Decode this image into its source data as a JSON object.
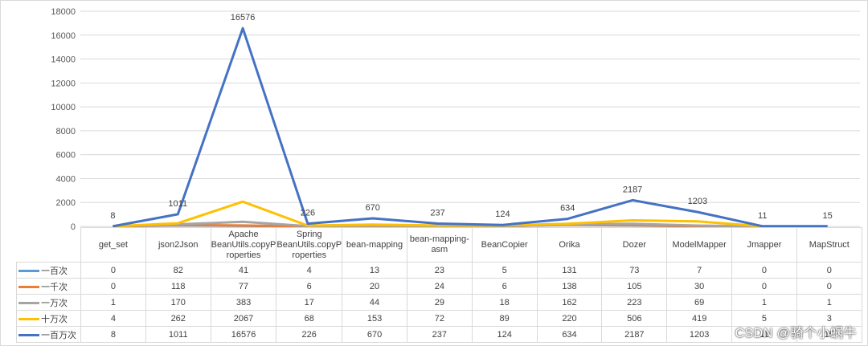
{
  "chart_data": {
    "type": "line",
    "categories": [
      "get_set",
      "json2Json",
      "Apache BeanUtils.copyProperties",
      "Spring BeanUtils.copyProperties",
      "bean-mapping",
      "bean-mapping-asm",
      "BeanCopier",
      "Orika",
      "Dozer",
      "ModelMapper",
      "Jmapper",
      "MapStruct"
    ],
    "category_display": [
      [
        "get_set"
      ],
      [
        "json2Json"
      ],
      [
        "Apache",
        "BeanUtils.copyP",
        "roperties"
      ],
      [
        "Spring",
        "BeanUtils.copyP",
        "roperties"
      ],
      [
        "bean-mapping"
      ],
      [
        "bean-mapping-",
        "asm"
      ],
      [
        "BeanCopier"
      ],
      [
        "Orika"
      ],
      [
        "Dozer"
      ],
      [
        "ModelMapper"
      ],
      [
        "Jmapper"
      ],
      [
        "MapStruct"
      ]
    ],
    "series": [
      {
        "name": "一百次",
        "color": "#5b9bd5",
        "values": [
          0,
          82,
          41,
          4,
          13,
          23,
          5,
          131,
          73,
          7,
          0,
          0
        ]
      },
      {
        "name": "一千次",
        "color": "#ed7d31",
        "values": [
          0,
          118,
          77,
          6,
          20,
          24,
          6,
          138,
          105,
          30,
          0,
          0
        ]
      },
      {
        "name": "一万次",
        "color": "#a5a5a5",
        "values": [
          1,
          170,
          383,
          17,
          44,
          29,
          18,
          162,
          223,
          69,
          1,
          1
        ]
      },
      {
        "name": "十万次",
        "color": "#ffc000",
        "values": [
          4,
          262,
          2067,
          68,
          153,
          72,
          89,
          220,
          506,
          419,
          5,
          3
        ]
      },
      {
        "name": "一百万次",
        "color": "#4472c4",
        "values": [
          8,
          1011,
          16576,
          226,
          670,
          237,
          124,
          634,
          2187,
          1203,
          11,
          15
        ]
      }
    ],
    "data_labels_series": "一百万次",
    "ylim": [
      0,
      18000
    ],
    "yticks": [
      "0",
      "2000",
      "4000",
      "6000",
      "8000",
      "10000",
      "12000",
      "14000",
      "16000",
      "18000"
    ],
    "grid": true,
    "legend": "data-table",
    "title": "",
    "xlabel": "",
    "ylabel": ""
  },
  "watermark": "CSDN @骑个小蜗牛"
}
